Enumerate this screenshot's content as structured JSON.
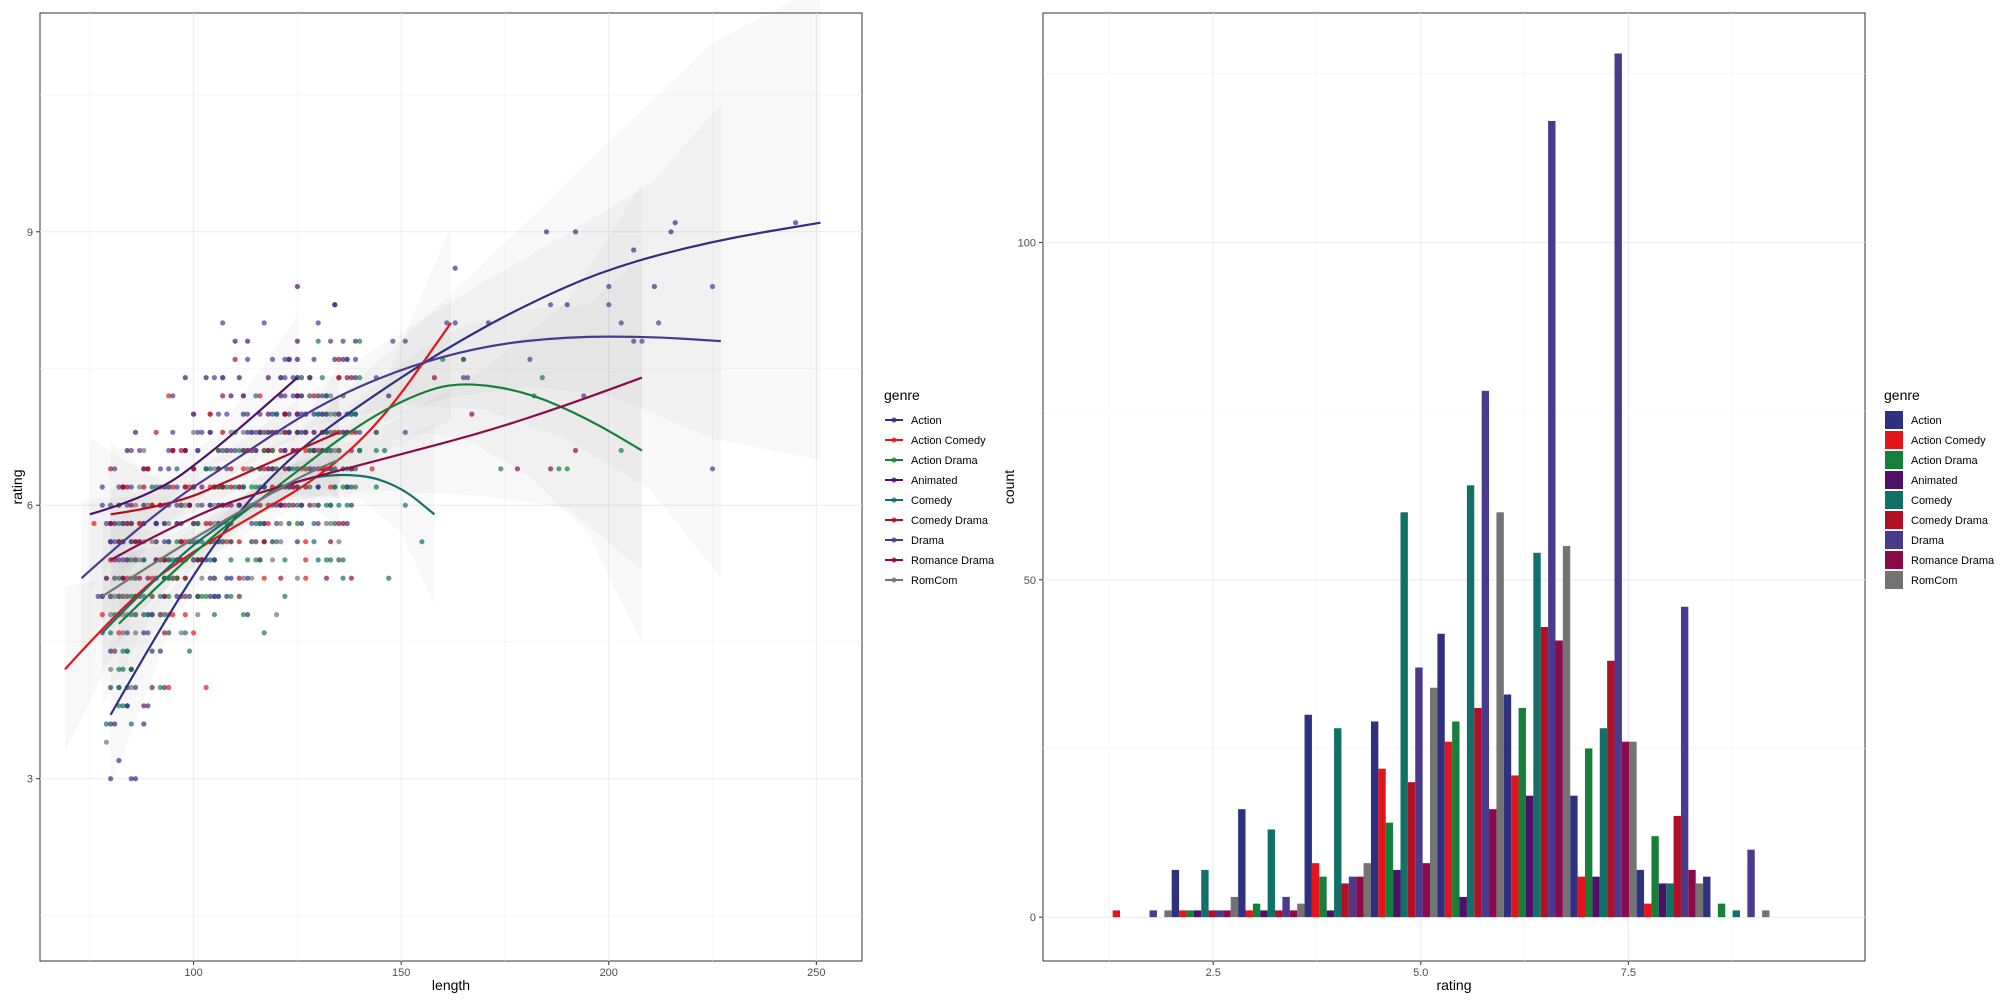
{
  "colors": {
    "Action": "#2e3180",
    "Action Comedy": "#e3151b",
    "Action Drama": "#16803a",
    "Animated": "#4e1068",
    "Comedy": "#117068",
    "Comedy Drama": "#b00f24",
    "Drama": "#4a3a8e",
    "Romance Drama": "#8a0a4a",
    "RomCom": "#737373"
  },
  "chart_data": [
    {
      "type": "scatter",
      "subtype": "scatter with loess smooth lines and confidence bands",
      "xlabel": "length",
      "ylabel": "rating",
      "xlim": [
        63,
        261
      ],
      "ylim": [
        1.0,
        11.4
      ],
      "xticks": [
        100,
        150,
        200,
        250
      ],
      "yticks": [
        3,
        6,
        9
      ],
      "grid": true,
      "legend": {
        "title": "genre",
        "placement": "right",
        "entries": [
          "Action",
          "Action Comedy",
          "Action Drama",
          "Animated",
          "Comedy",
          "Comedy Drama",
          "Drama",
          "Romance Drama",
          "RomCom"
        ]
      },
      "smooth_series": [
        {
          "name": "Action",
          "x": [
            80,
            95,
            110,
            125,
            140,
            160,
            180,
            200,
            225,
            251
          ],
          "y": [
            3.7,
            4.9,
            5.9,
            6.6,
            7.1,
            7.7,
            8.2,
            8.6,
            8.9,
            9.1
          ]
        },
        {
          "name": "Action Comedy",
          "x": [
            69,
            85,
            100,
            115,
            130,
            145,
            162
          ],
          "y": [
            4.2,
            5.0,
            5.5,
            5.9,
            6.3,
            6.9,
            8.0
          ]
        },
        {
          "name": "Action Drama",
          "x": [
            82,
            100,
            120,
            140,
            155,
            165,
            180,
            195,
            208
          ],
          "y": [
            4.7,
            5.5,
            6.2,
            6.9,
            7.25,
            7.35,
            7.25,
            6.95,
            6.6
          ]
        },
        {
          "name": "Animated",
          "x": [
            75,
            90,
            105,
            125
          ],
          "y": [
            5.9,
            6.1,
            6.6,
            7.4
          ]
        },
        {
          "name": "Comedy",
          "x": [
            78,
            95,
            110,
            125,
            140,
            150,
            158
          ],
          "y": [
            4.6,
            5.4,
            5.9,
            6.3,
            6.35,
            6.2,
            5.9
          ]
        },
        {
          "name": "Comedy Drama",
          "x": [
            80,
            95,
            110,
            125,
            135
          ],
          "y": [
            5.9,
            6.0,
            6.3,
            6.6,
            6.8
          ]
        },
        {
          "name": "Drama",
          "x": [
            73,
            90,
            110,
            130,
            150,
            170,
            190,
            210,
            227
          ],
          "y": [
            5.2,
            5.9,
            6.5,
            7.1,
            7.5,
            7.75,
            7.85,
            7.85,
            7.8
          ]
        },
        {
          "name": "Romance Drama",
          "x": [
            80,
            100,
            120,
            145,
            170,
            190,
            208
          ],
          "y": [
            5.4,
            5.9,
            6.2,
            6.5,
            6.8,
            7.1,
            7.4
          ]
        },
        {
          "name": "RomCom",
          "x": [
            78,
            95,
            110,
            125,
            135
          ],
          "y": [
            5.0,
            5.5,
            5.9,
            6.3,
            6.5
          ]
        }
      ]
    },
    {
      "type": "bar",
      "subtype": "dodged histogram",
      "xlabel": "rating",
      "ylabel": "count",
      "xlim": [
        0.45,
        10.35
      ],
      "ylim": [
        -6.5,
        134
      ],
      "xticks": [
        2.5,
        5.0,
        7.5
      ],
      "xtick_labels": [
        "2.5",
        "5.0",
        "7.5"
      ],
      "yticks": [
        0,
        50,
        100
      ],
      "grid": true,
      "bin_width": 0.8,
      "legend": {
        "title": "genre",
        "placement": "right",
        "entries": [
          "Action",
          "Action Comedy",
          "Action Drama",
          "Animated",
          "Comedy",
          "Comedy Drama",
          "Drama",
          "Romance Drama",
          "RomCom"
        ]
      },
      "bin_centers": [
        1.6,
        2.4,
        3.2,
        4.0,
        4.8,
        5.6,
        6.4,
        7.2,
        8.0,
        8.8
      ],
      "series": [
        {
          "name": "Action",
          "values": [
            0,
            7,
            16,
            30,
            29,
            42,
            33,
            18,
            7,
            6
          ]
        },
        {
          "name": "Action Comedy",
          "values": [
            1,
            1,
            1,
            8,
            22,
            26,
            21,
            6,
            2,
            0
          ]
        },
        {
          "name": "Action Drama",
          "values": [
            0,
            1,
            2,
            6,
            14,
            29,
            31,
            25,
            12,
            2
          ]
        },
        {
          "name": "Animated",
          "values": [
            0,
            1,
            1,
            1,
            7,
            3,
            18,
            6,
            5,
            0
          ]
        },
        {
          "name": "Comedy",
          "values": [
            0,
            7,
            13,
            28,
            60,
            64,
            54,
            28,
            5,
            1
          ]
        },
        {
          "name": "Comedy Drama",
          "values": [
            0,
            1,
            1,
            5,
            20,
            31,
            43,
            38,
            15,
            0
          ]
        },
        {
          "name": "Drama",
          "values": [
            1,
            1,
            3,
            6,
            37,
            78,
            118,
            128,
            46,
            10
          ]
        },
        {
          "name": "Romance Drama",
          "values": [
            0,
            1,
            1,
            6,
            8,
            16,
            41,
            26,
            7,
            0
          ]
        },
        {
          "name": "RomCom",
          "values": [
            1,
            3,
            2,
            8,
            34,
            60,
            55,
            26,
            5,
            1
          ]
        }
      ]
    }
  ]
}
